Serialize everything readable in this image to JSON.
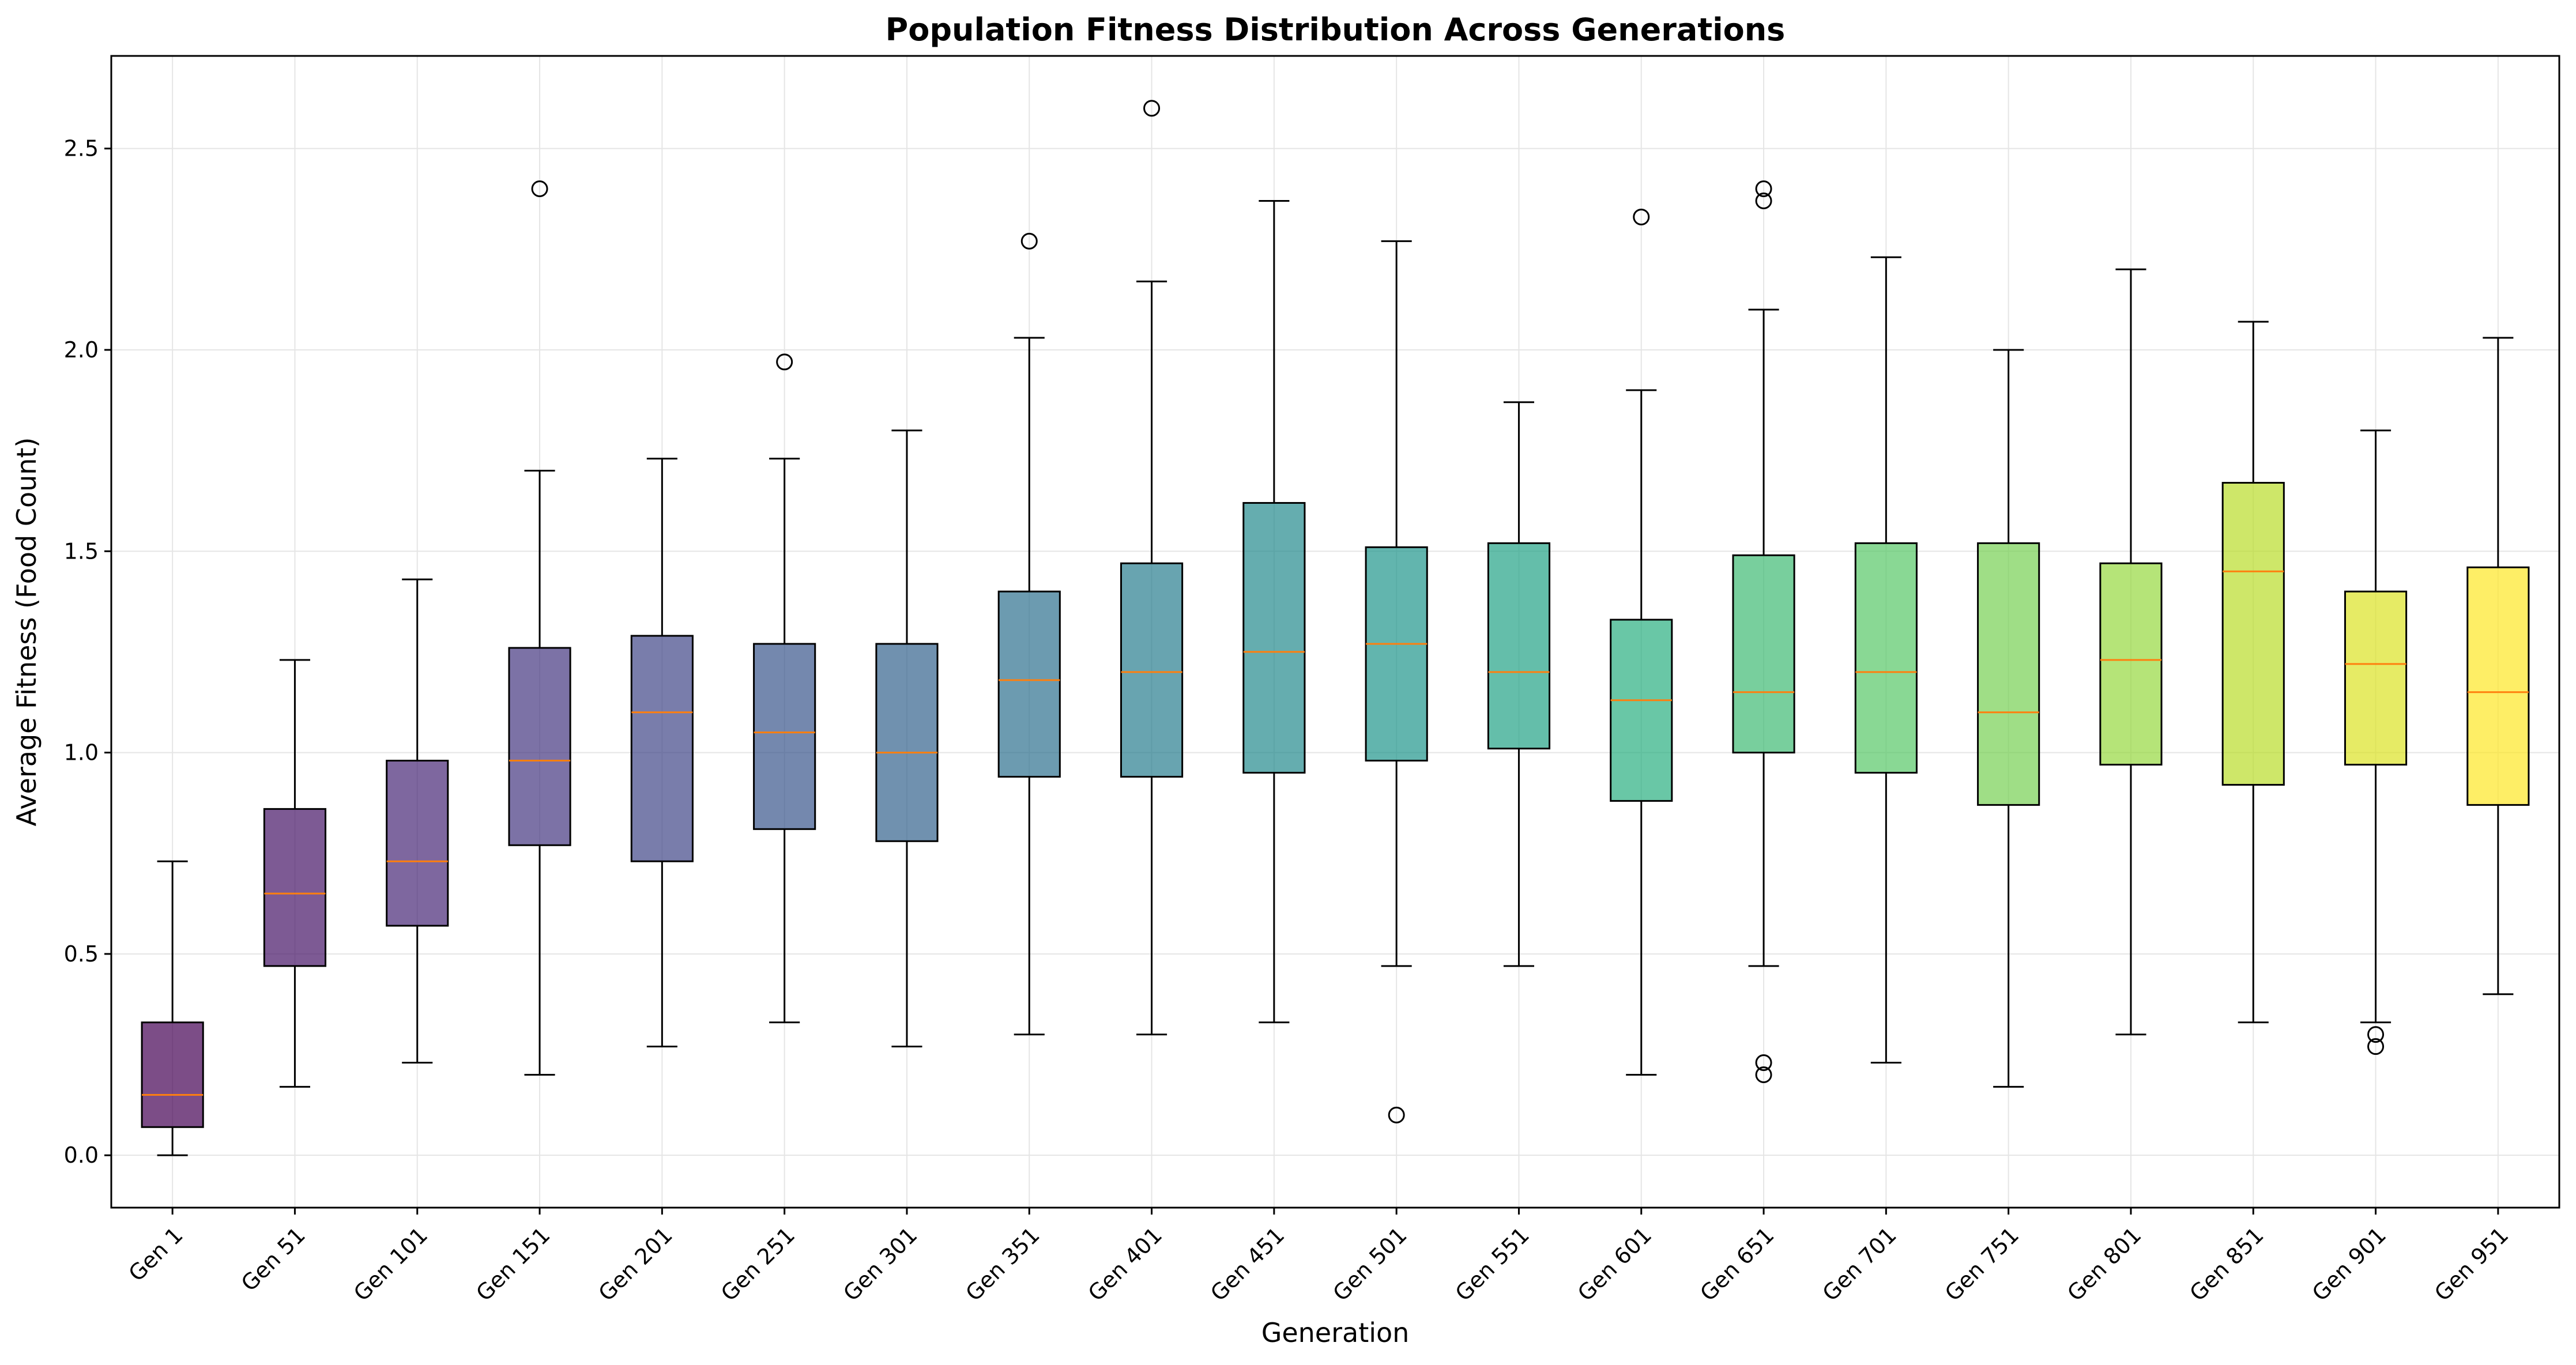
{
  "chart_data": {
    "type": "box",
    "title": "Population Fitness Distribution Across Generations",
    "xlabel": "Generation",
    "ylabel": "Average Fitness (Food Count)",
    "ylim": [
      -0.13,
      2.73
    ],
    "yticks": [
      "0.0",
      "0.5",
      "1.0",
      "1.5",
      "2.0",
      "2.5"
    ],
    "grid": true,
    "categories": [
      "Gen 1",
      "Gen 51",
      "Gen 101",
      "Gen 151",
      "Gen 201",
      "Gen 251",
      "Gen 301",
      "Gen 351",
      "Gen 401",
      "Gen 451",
      "Gen 501",
      "Gen 551",
      "Gen 601",
      "Gen 651",
      "Gen 701",
      "Gen 751",
      "Gen 801",
      "Gen 851",
      "Gen 901",
      "Gen 951"
    ],
    "boxes": [
      {
        "whislo": 0.0,
        "q1": 0.07,
        "med": 0.15,
        "q3": 0.33,
        "whishi": 0.73,
        "fliers": []
      },
      {
        "whislo": 0.17,
        "q1": 0.47,
        "med": 0.65,
        "q3": 0.86,
        "whishi": 1.23,
        "fliers": []
      },
      {
        "whislo": 0.23,
        "q1": 0.57,
        "med": 0.73,
        "q3": 0.98,
        "whishi": 1.43,
        "fliers": []
      },
      {
        "whislo": 0.2,
        "q1": 0.77,
        "med": 0.98,
        "q3": 1.26,
        "whishi": 1.7,
        "fliers": [
          2.4
        ]
      },
      {
        "whislo": 0.27,
        "q1": 0.73,
        "med": 1.1,
        "q3": 1.29,
        "whishi": 1.73,
        "fliers": []
      },
      {
        "whislo": 0.33,
        "q1": 0.81,
        "med": 1.05,
        "q3": 1.27,
        "whishi": 1.73,
        "fliers": [
          1.97
        ]
      },
      {
        "whislo": 0.27,
        "q1": 0.78,
        "med": 1.0,
        "q3": 1.27,
        "whishi": 1.8,
        "fliers": []
      },
      {
        "whislo": 0.3,
        "q1": 0.94,
        "med": 1.18,
        "q3": 1.4,
        "whishi": 2.03,
        "fliers": [
          2.27
        ]
      },
      {
        "whislo": 0.3,
        "q1": 0.94,
        "med": 1.2,
        "q3": 1.47,
        "whishi": 2.17,
        "fliers": [
          2.6
        ]
      },
      {
        "whislo": 0.33,
        "q1": 0.95,
        "med": 1.25,
        "q3": 1.62,
        "whishi": 2.37,
        "fliers": []
      },
      {
        "whislo": 0.47,
        "q1": 0.98,
        "med": 1.27,
        "q3": 1.51,
        "whishi": 2.27,
        "fliers": [
          0.1
        ]
      },
      {
        "whislo": 0.47,
        "q1": 1.01,
        "med": 1.2,
        "q3": 1.52,
        "whishi": 1.87,
        "fliers": []
      },
      {
        "whislo": 0.2,
        "q1": 0.88,
        "med": 1.13,
        "q3": 1.33,
        "whishi": 1.9,
        "fliers": [
          2.33
        ]
      },
      {
        "whislo": 0.47,
        "q1": 1.0,
        "med": 1.15,
        "q3": 1.49,
        "whishi": 2.1,
        "fliers": [
          2.4,
          2.37,
          0.23,
          0.2
        ]
      },
      {
        "whislo": 0.23,
        "q1": 0.95,
        "med": 1.2,
        "q3": 1.52,
        "whishi": 2.23,
        "fliers": []
      },
      {
        "whislo": 0.17,
        "q1": 0.87,
        "med": 1.1,
        "q3": 1.52,
        "whishi": 2.0,
        "fliers": []
      },
      {
        "whislo": 0.3,
        "q1": 0.97,
        "med": 1.23,
        "q3": 1.47,
        "whishi": 2.2,
        "fliers": []
      },
      {
        "whislo": 0.33,
        "q1": 0.92,
        "med": 1.45,
        "q3": 1.67,
        "whishi": 2.07,
        "fliers": []
      },
      {
        "whislo": 0.33,
        "q1": 0.97,
        "med": 1.22,
        "q3": 1.4,
        "whishi": 1.8,
        "fliers": [
          0.3,
          0.27
        ]
      },
      {
        "whislo": 0.4,
        "q1": 0.87,
        "med": 1.15,
        "q3": 1.46,
        "whishi": 2.03,
        "fliers": []
      }
    ],
    "box_colors": [
      "#440154",
      "#482173",
      "#433e85",
      "#38588c",
      "#2d708e",
      "#25858e",
      "#1e9b8a",
      "#2ab07f",
      "#52c569",
      "#86d549",
      "#c2df23",
      "#fde725"
    ],
    "median_color": "#ff7f0e",
    "grid_color": "#e5e5e5"
  }
}
